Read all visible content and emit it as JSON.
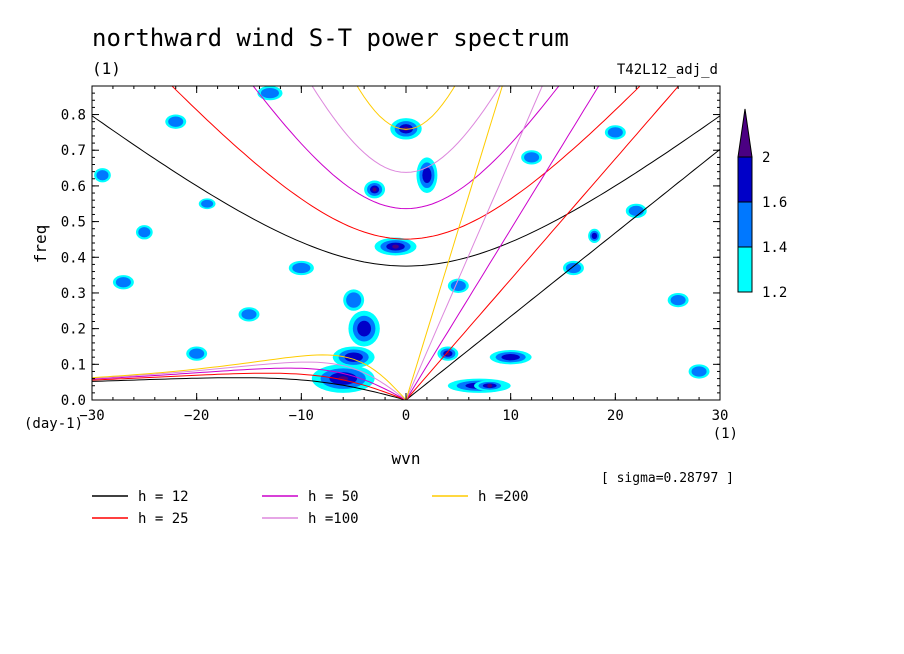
{
  "chart_data": {
    "type": "heatmap",
    "title": "northward wind S-T power spectrum",
    "subtitle_left": "(1)",
    "subtitle_right": "T42L12_adj_d",
    "xlabel": "wvn",
    "ylabel": "freq",
    "x_unit": "(1)",
    "y_unit": "(day-1)",
    "xlim": [
      -30,
      30
    ],
    "ylim": [
      0,
      0.88
    ],
    "x_ticks": [
      -30,
      -20,
      -10,
      0,
      10,
      20,
      30
    ],
    "y_ticks": [
      0.0,
      0.1,
      0.2,
      0.3,
      0.4,
      0.5,
      0.6,
      0.7,
      0.8
    ],
    "sigma_label": "[ sigma=0.28797 ]",
    "colorbar": {
      "levels": [
        1.2,
        1.4,
        1.6,
        2
      ],
      "colors": [
        "#00ffff",
        "#0078ff",
        "#0000c8",
        "#4b0082"
      ]
    },
    "dispersion_curves": [
      {
        "label": "h = 12",
        "h": 12,
        "color": "#000000"
      },
      {
        "label": "h = 25",
        "h": 25,
        "color": "#ff0000"
      },
      {
        "label": "h = 50",
        "h": 50,
        "color": "#cc00cc"
      },
      {
        "label": "h =100",
        "h": 100,
        "color": "#dd88dd"
      },
      {
        "label": "h =200",
        "h": 200,
        "color": "#ffcc00"
      }
    ],
    "blobs": [
      {
        "x": -6,
        "y": 0.06,
        "rx": 3.0,
        "ry": 0.04,
        "level": 3
      },
      {
        "x": -5,
        "y": 0.12,
        "rx": 2.0,
        "ry": 0.03,
        "level": 2
      },
      {
        "x": -4,
        "y": 0.2,
        "rx": 1.5,
        "ry": 0.05,
        "level": 2
      },
      {
        "x": -5,
        "y": 0.28,
        "rx": 1.0,
        "ry": 0.03,
        "level": 1
      },
      {
        "x": 7,
        "y": 0.04,
        "rx": 3.0,
        "ry": 0.02,
        "level": 2
      },
      {
        "x": 8,
        "y": 0.04,
        "rx": 1.5,
        "ry": 0.015,
        "level": 3
      },
      {
        "x": 4,
        "y": 0.13,
        "rx": 1.0,
        "ry": 0.02,
        "level": 3
      },
      {
        "x": -1,
        "y": 0.43,
        "rx": 2.0,
        "ry": 0.025,
        "level": 3
      },
      {
        "x": -3,
        "y": 0.59,
        "rx": 1.0,
        "ry": 0.025,
        "level": 3
      },
      {
        "x": 0,
        "y": 0.76,
        "rx": 1.5,
        "ry": 0.03,
        "level": 3
      },
      {
        "x": 2,
        "y": 0.63,
        "rx": 1.0,
        "ry": 0.05,
        "level": 2
      },
      {
        "x": 10,
        "y": 0.12,
        "rx": 2.0,
        "ry": 0.02,
        "level": 2
      },
      {
        "x": 18,
        "y": 0.46,
        "rx": 0.6,
        "ry": 0.02,
        "level": 2
      },
      {
        "x": -19,
        "y": 0.55,
        "rx": 0.8,
        "ry": 0.015,
        "level": 1
      },
      {
        "x": -25,
        "y": 0.47,
        "rx": 0.8,
        "ry": 0.02,
        "level": 1
      },
      {
        "x": -22,
        "y": 0.78,
        "rx": 1.0,
        "ry": 0.02,
        "level": 1
      },
      {
        "x": -29,
        "y": 0.63,
        "rx": 0.8,
        "ry": 0.02,
        "level": 1
      },
      {
        "x": -10,
        "y": 0.37,
        "rx": 1.2,
        "ry": 0.02,
        "level": 1
      },
      {
        "x": 5,
        "y": 0.32,
        "rx": 1.0,
        "ry": 0.02,
        "level": 1
      },
      {
        "x": 16,
        "y": 0.37,
        "rx": 1.0,
        "ry": 0.02,
        "level": 1
      },
      {
        "x": 26,
        "y": 0.28,
        "rx": 1.0,
        "ry": 0.02,
        "level": 1
      },
      {
        "x": -13,
        "y": 0.86,
        "rx": 1.2,
        "ry": 0.02,
        "level": 1
      },
      {
        "x": 12,
        "y": 0.68,
        "rx": 1.0,
        "ry": 0.02,
        "level": 1
      },
      {
        "x": -20,
        "y": 0.13,
        "rx": 1.0,
        "ry": 0.02,
        "level": 1
      },
      {
        "x": -27,
        "y": 0.33,
        "rx": 1.0,
        "ry": 0.02,
        "level": 1
      },
      {
        "x": 22,
        "y": 0.53,
        "rx": 1.0,
        "ry": 0.02,
        "level": 1
      },
      {
        "x": 28,
        "y": 0.08,
        "rx": 1.0,
        "ry": 0.02,
        "level": 1
      },
      {
        "x": -15,
        "y": 0.24,
        "rx": 1.0,
        "ry": 0.02,
        "level": 1
      },
      {
        "x": 20,
        "y": 0.75,
        "rx": 1.0,
        "ry": 0.02,
        "level": 1
      }
    ]
  }
}
